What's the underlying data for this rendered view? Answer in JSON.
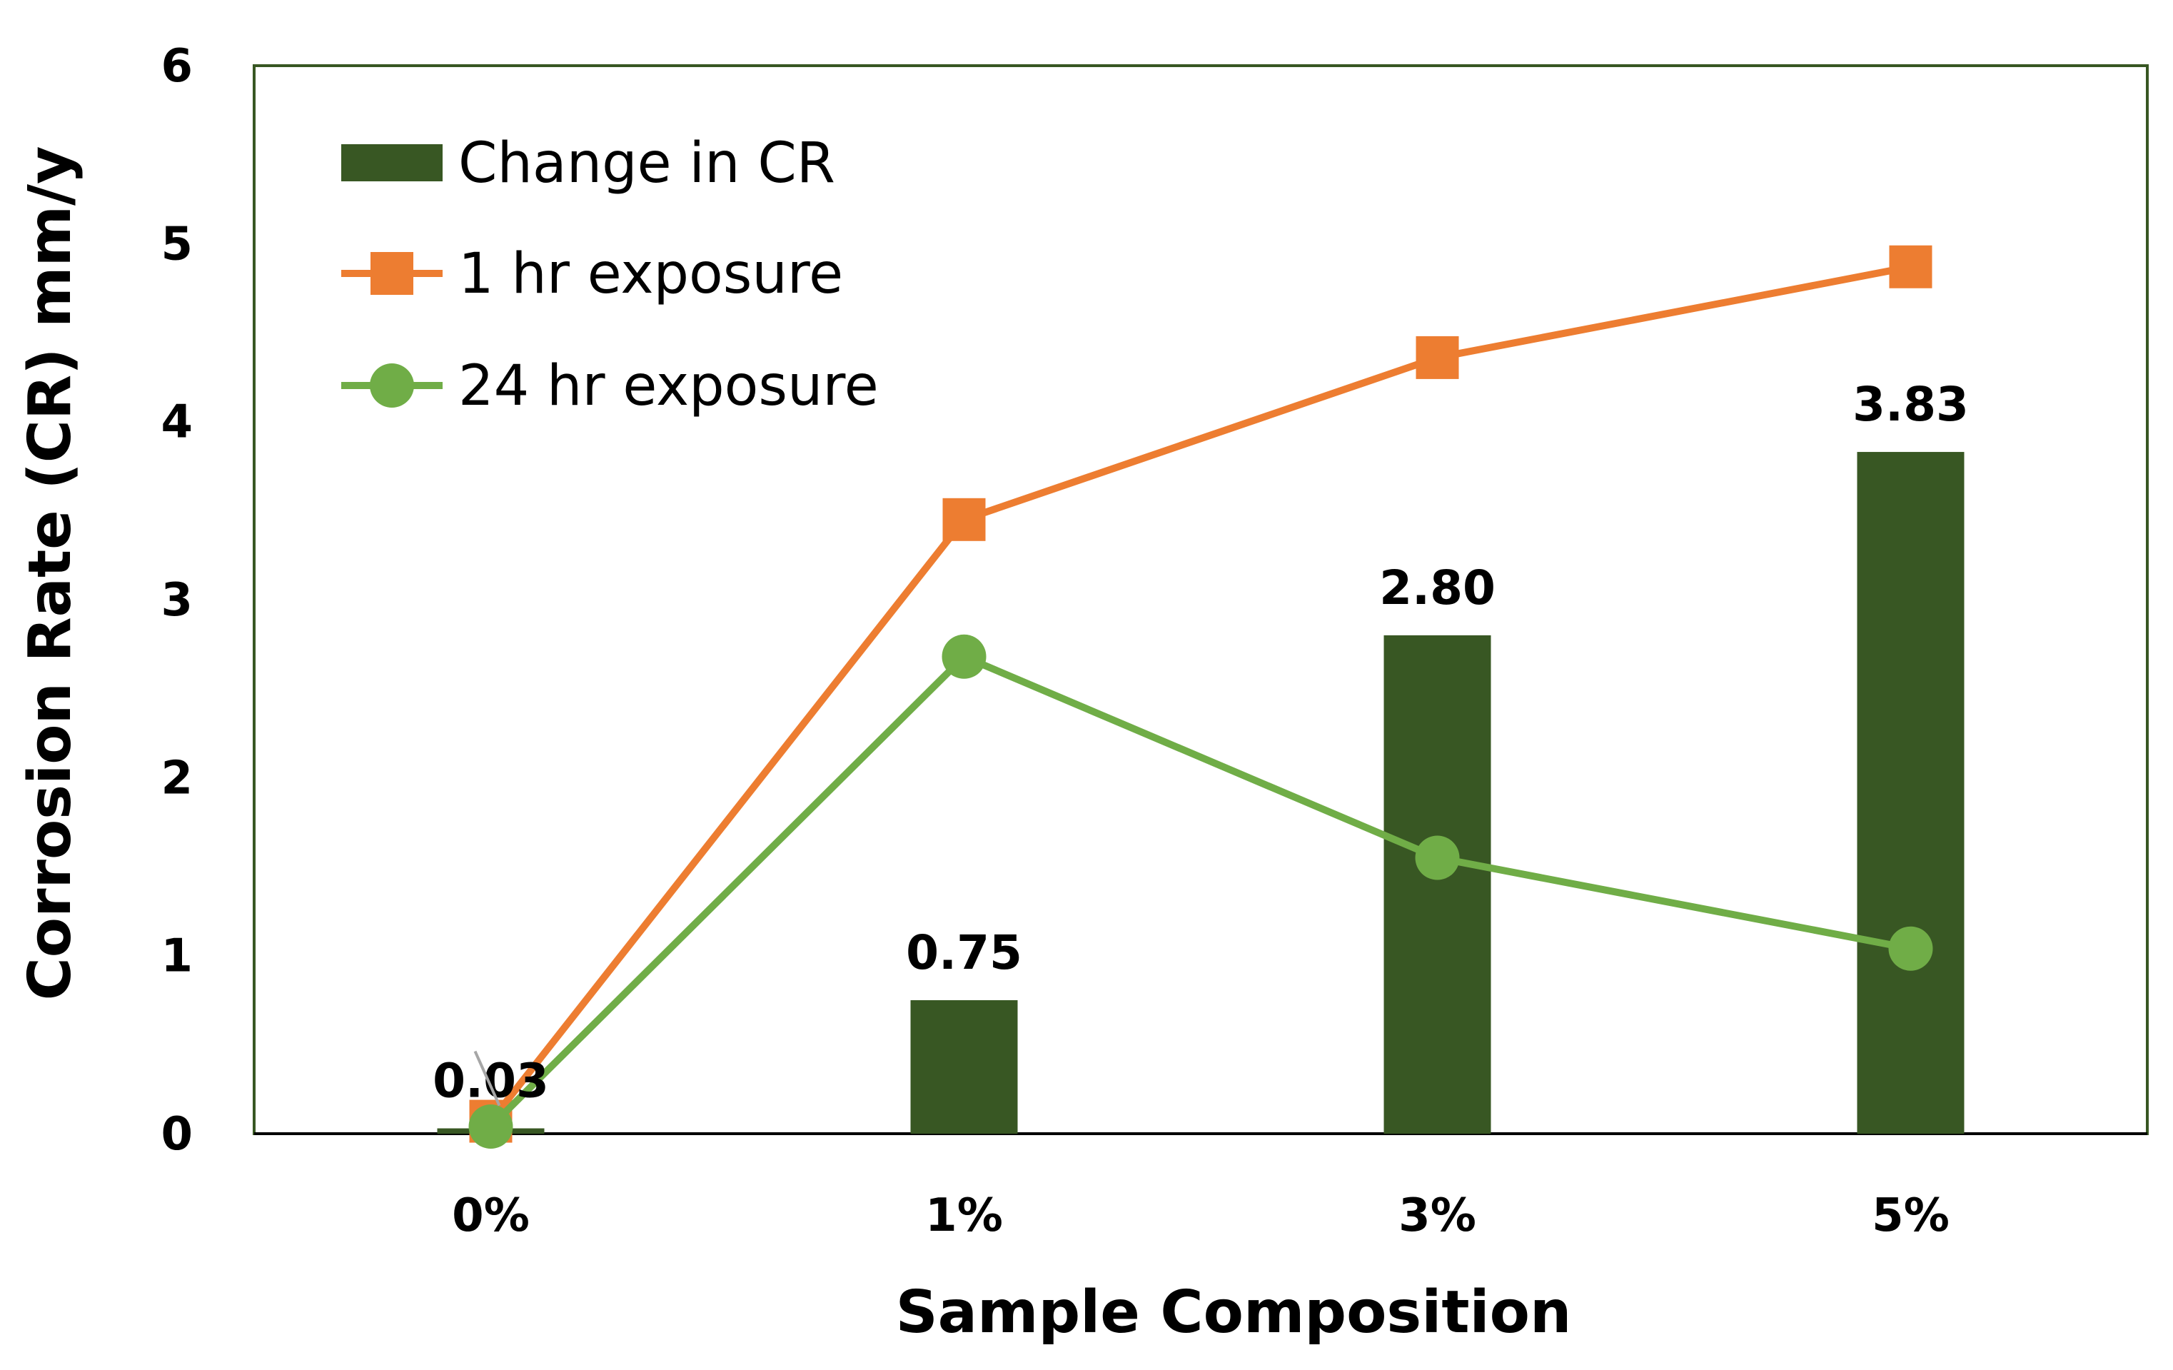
{
  "chart_data": {
    "type": "bar+line",
    "title": "",
    "xlabel": "Sample Composition",
    "ylabel": "Corrosion Rate (CR) mm/y",
    "categories": [
      "0%",
      "1%",
      "3%",
      "5%"
    ],
    "ylim": [
      0,
      6
    ],
    "yticks": [
      0,
      1,
      2,
      3,
      4,
      5,
      6
    ],
    "grid": false,
    "legend_position": "top-left",
    "series": [
      {
        "name": "Change in CR",
        "kind": "bar",
        "color": "#385723",
        "values": [
          0.03,
          0.75,
          2.8,
          3.83
        ],
        "labels": [
          "0.03",
          "0.75",
          "2.80",
          "3.83"
        ]
      },
      {
        "name": "1 hr exposure",
        "kind": "line",
        "marker": "square",
        "color": "#ED7D31",
        "values": [
          0.07,
          3.45,
          4.36,
          4.87
        ]
      },
      {
        "name": "24 hr exposure",
        "kind": "line",
        "marker": "circle",
        "color": "#70AD47",
        "values": [
          0.04,
          2.68,
          1.55,
          1.04
        ]
      }
    ],
    "plot_border_color": "#385723"
  }
}
